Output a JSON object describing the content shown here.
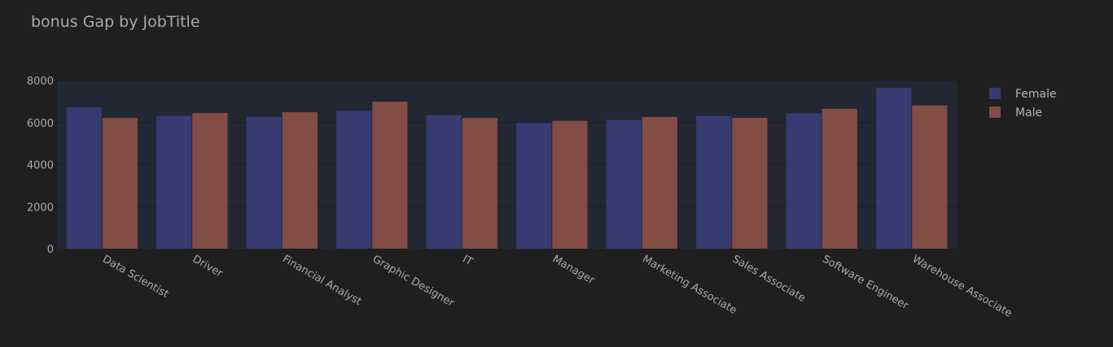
{
  "chart_data": {
    "type": "bar",
    "title": "bonus Gap by JobTitle",
    "xlabel": "",
    "ylabel": "",
    "categories": [
      "Data Scientist",
      "Driver",
      "Financial Analyst",
      "Graphic Designer",
      "IT",
      "Manager",
      "Marketing Associate",
      "Sales Associate",
      "Software Engineer",
      "Warehouse Associate"
    ],
    "series": [
      {
        "name": "Female",
        "color": "#383a72",
        "values": [
          6720,
          6320,
          6260,
          6550,
          6350,
          5980,
          6120,
          6310,
          6440,
          7650
        ]
      },
      {
        "name": "Male",
        "color": "#824d45",
        "values": [
          6210,
          6450,
          6490,
          6990,
          6210,
          6080,
          6260,
          6220,
          6650,
          6810
        ]
      }
    ],
    "ylim": [
      0,
      8000
    ],
    "yticks": [
      0,
      2000,
      4000,
      6000,
      8000
    ],
    "ytick_labels": [
      "0",
      "2000",
      "4000",
      "6000",
      "8000"
    ],
    "grid": true,
    "legend_position": "top-right",
    "colors": {
      "background": "#1f1f1f",
      "plot_background": "#222733",
      "gridline": "#1a1d27",
      "text": "#a9a9a9",
      "legend_text": "#b4b4b4"
    }
  }
}
